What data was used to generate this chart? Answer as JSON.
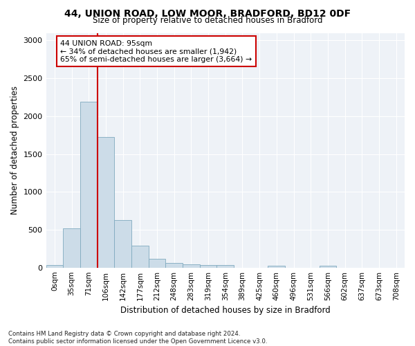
{
  "title1": "44, UNION ROAD, LOW MOOR, BRADFORD, BD12 0DF",
  "title2": "Size of property relative to detached houses in Bradford",
  "xlabel": "Distribution of detached houses by size in Bradford",
  "ylabel": "Number of detached properties",
  "footnote1": "Contains HM Land Registry data © Crown copyright and database right 2024.",
  "footnote2": "Contains public sector information licensed under the Open Government Licence v3.0.",
  "bar_labels": [
    "0sqm",
    "35sqm",
    "71sqm",
    "106sqm",
    "142sqm",
    "177sqm",
    "212sqm",
    "248sqm",
    "283sqm",
    "319sqm",
    "354sqm",
    "389sqm",
    "425sqm",
    "460sqm",
    "496sqm",
    "531sqm",
    "566sqm",
    "602sqm",
    "637sqm",
    "673sqm",
    "708sqm"
  ],
  "bar_values": [
    30,
    520,
    2190,
    1720,
    630,
    285,
    120,
    65,
    45,
    35,
    35,
    0,
    0,
    25,
    0,
    0,
    20,
    0,
    0,
    0,
    0
  ],
  "bar_color": "#ccdce8",
  "bar_edge_color": "#7faabf",
  "vline_color": "#cc0000",
  "vline_pos": 3.0,
  "ylim": [
    0,
    3100
  ],
  "yticks": [
    0,
    500,
    1000,
    1500,
    2000,
    2500,
    3000
  ],
  "annotation_text": "44 UNION ROAD: 95sqm\n← 34% of detached houses are smaller (1,942)\n65% of semi-detached houses are larger (3,664) →",
  "annotation_box_color": "#ffffff",
  "annotation_box_edge": "#cc0000",
  "bg_color": "#eef2f7",
  "grid_color": "#ffffff",
  "figsize": [
    6.0,
    5.0
  ],
  "dpi": 100
}
